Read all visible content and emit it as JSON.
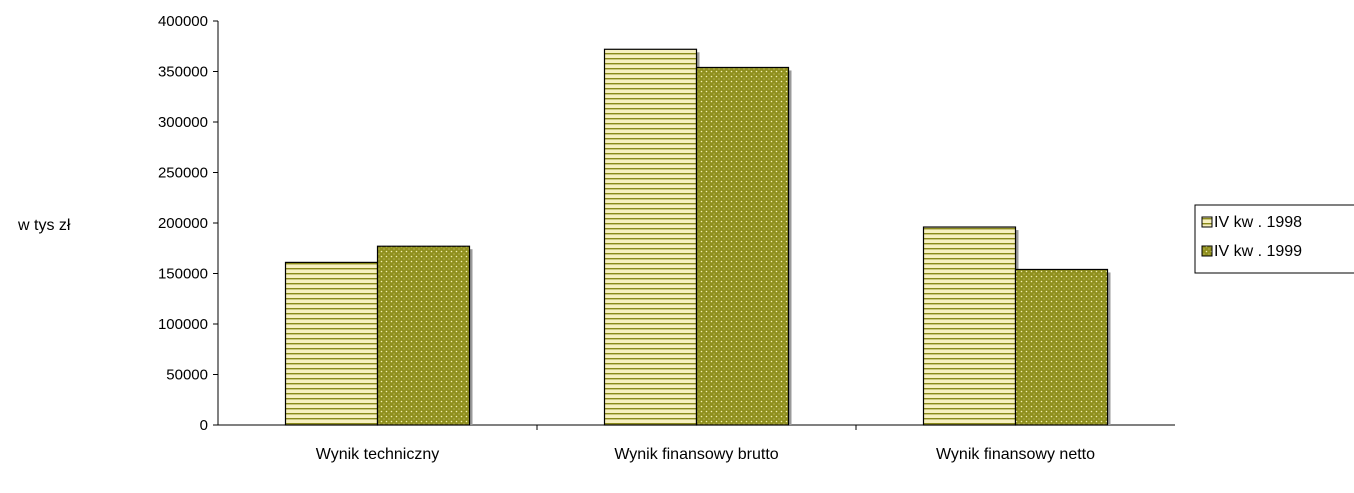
{
  "chart_data": {
    "type": "bar",
    "ylabel": "w tys zł",
    "ylim": [
      0,
      400000
    ],
    "yticks": [
      "0",
      "50000",
      "100000",
      "150000",
      "200000",
      "250000",
      "300000",
      "350000",
      "400000"
    ],
    "categories": [
      "Wynik techniczny",
      "Wynik finansowy brutto",
      "Wynik finansowy netto"
    ],
    "series": [
      {
        "name": "IV kw . 1998",
        "values": [
          161000,
          372000,
          196000
        ],
        "pattern": "horizontal-stripes",
        "color": "#f7f0c0",
        "stripe_color": "#8a8a1a"
      },
      {
        "name": "IV kw . 1999",
        "values": [
          177000,
          354000,
          154000
        ],
        "pattern": "dotted",
        "color": "#8f8f1d",
        "dot_color": "#f3f0b0"
      }
    ],
    "legend_position": "right",
    "grid": false
  }
}
